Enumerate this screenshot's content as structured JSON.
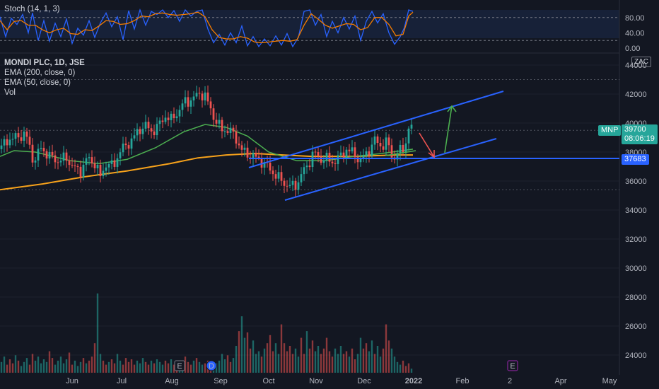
{
  "indicator": {
    "stoch_label": "Stoch (14, 1, 3)"
  },
  "legend": {
    "symbol": "MONDI PLC, 1D, JSE",
    "ema200": "EMA (200, close, 0)",
    "ema50": "EMA (50, close, 0)",
    "vol": "Vol"
  },
  "currency_badge": "ZAC",
  "price_tags": {
    "ticker": "MNP",
    "price": "39700",
    "countdown": "08:06:19",
    "level": "37683"
  },
  "colors": {
    "background": "#131722",
    "up": "#26a69a",
    "down": "#ef5350",
    "ema200": "#f7a21b",
    "ema50": "#4caf50",
    "stoch_k": "#2962ff",
    "stoch_d": "#f57c00",
    "trend": "#2962ff",
    "projection_down": "#ef5350",
    "projection_up": "#4caf50"
  },
  "chart_data": {
    "type": "candlestick",
    "timeframe": "1D",
    "x_ticks": [
      "Jun",
      "Jul",
      "Aug",
      "Sep",
      "Oct",
      "Nov",
      "Dec",
      "2022",
      "Feb",
      "2",
      "Apr",
      "May"
    ],
    "y_ticks": [
      "24000",
      "26000",
      "28000",
      "30000",
      "32000",
      "34000",
      "36000",
      "38000",
      "40000",
      "42000",
      "44000"
    ],
    "ylim": [
      22500,
      44700
    ],
    "stoch_y_ticks": [
      "0.00",
      "40.00",
      "80.00"
    ],
    "stoch_range": [
      0,
      100
    ],
    "stoch_levels": [
      20,
      80
    ],
    "close_path": [
      [
        0,
        38200
      ],
      [
        12,
        38900
      ],
      [
        24,
        39000
      ],
      [
        36,
        39300
      ],
      [
        48,
        37300
      ],
      [
        58,
        38300
      ],
      [
        70,
        37700
      ],
      [
        82,
        37400
      ],
      [
        94,
        37600
      ],
      [
        104,
        36900
      ],
      [
        114,
        36700
      ],
      [
        124,
        37600
      ],
      [
        134,
        37200
      ],
      [
        142,
        36300
      ],
      [
        150,
        37200
      ],
      [
        160,
        37000
      ],
      [
        170,
        38100
      ],
      [
        180,
        38500
      ],
      [
        192,
        39200
      ],
      [
        204,
        39900
      ],
      [
        214,
        39400
      ],
      [
        224,
        39800
      ],
      [
        234,
        40500
      ],
      [
        242,
        40200
      ],
      [
        252,
        40800
      ],
      [
        262,
        41500
      ],
      [
        272,
        41600
      ],
      [
        282,
        42100
      ],
      [
        290,
        41800
      ],
      [
        298,
        41000
      ],
      [
        306,
        40000
      ],
      [
        314,
        39600
      ],
      [
        322,
        39500
      ],
      [
        332,
        39200
      ],
      [
        340,
        38200
      ],
      [
        348,
        37900
      ],
      [
        358,
        37700
      ],
      [
        366,
        37500
      ],
      [
        376,
        37100
      ],
      [
        386,
        36600
      ],
      [
        396,
        36100
      ],
      [
        404,
        35800
      ],
      [
        412,
        35600
      ],
      [
        420,
        35800
      ],
      [
        428,
        36600
      ],
      [
        436,
        37200
      ],
      [
        444,
        38000
      ],
      [
        452,
        37500
      ],
      [
        460,
        37600
      ],
      [
        470,
        37300
      ],
      [
        480,
        37600
      ],
      [
        490,
        38200
      ],
      [
        500,
        37900
      ],
      [
        510,
        37400
      ],
      [
        520,
        38000
      ],
      [
        530,
        38800
      ],
      [
        540,
        38400
      ],
      [
        548,
        38700
      ],
      [
        556,
        37500
      ],
      [
        564,
        38000
      ],
      [
        572,
        38300
      ],
      [
        578,
        39600
      ],
      [
        584,
        39700
      ]
    ],
    "ema200_path": [
      [
        0,
        35400
      ],
      [
        60,
        35800
      ],
      [
        120,
        36300
      ],
      [
        180,
        36700
      ],
      [
        240,
        37200
      ],
      [
        280,
        37600
      ],
      [
        320,
        37800
      ],
      [
        360,
        37900
      ],
      [
        400,
        37800
      ],
      [
        440,
        37700
      ],
      [
        500,
        37700
      ],
      [
        560,
        37800
      ],
      [
        584,
        37800
      ]
    ],
    "ema50_path": [
      [
        0,
        37700
      ],
      [
        20,
        38100
      ],
      [
        50,
        38000
      ],
      [
        100,
        37400
      ],
      [
        140,
        37200
      ],
      [
        180,
        37500
      ],
      [
        220,
        38300
      ],
      [
        260,
        39400
      ],
      [
        290,
        39900
      ],
      [
        320,
        39700
      ],
      [
        350,
        39100
      ],
      [
        380,
        38000
      ],
      [
        420,
        37400
      ],
      [
        460,
        37400
      ],
      [
        500,
        37700
      ],
      [
        540,
        37900
      ],
      [
        584,
        38200
      ]
    ],
    "stoch_k_path": [
      [
        0,
        82
      ],
      [
        8,
        30
      ],
      [
        16,
        78
      ],
      [
        24,
        62
      ],
      [
        32,
        88
      ],
      [
        40,
        40
      ],
      [
        46,
        92
      ],
      [
        54,
        20
      ],
      [
        62,
        72
      ],
      [
        70,
        18
      ],
      [
        78,
        65
      ],
      [
        86,
        30
      ],
      [
        94,
        76
      ],
      [
        102,
        12
      ],
      [
        110,
        52
      ],
      [
        118,
        34
      ],
      [
        126,
        72
      ],
      [
        134,
        28
      ],
      [
        142,
        66
      ],
      [
        150,
        92
      ],
      [
        158,
        56
      ],
      [
        166,
        82
      ],
      [
        174,
        22
      ],
      [
        182,
        98
      ],
      [
        190,
        50
      ],
      [
        198,
        100
      ],
      [
        206,
        60
      ],
      [
        214,
        96
      ],
      [
        222,
        88
      ],
      [
        230,
        100
      ],
      [
        238,
        80
      ],
      [
        246,
        98
      ],
      [
        254,
        70
      ],
      [
        262,
        100
      ],
      [
        270,
        84
      ],
      [
        278,
        96
      ],
      [
        286,
        100
      ],
      [
        294,
        50
      ],
      [
        302,
        14
      ],
      [
        310,
        36
      ],
      [
        318,
        8
      ],
      [
        326,
        40
      ],
      [
        334,
        14
      ],
      [
        342,
        58
      ],
      [
        350,
        6
      ],
      [
        358,
        30
      ],
      [
        366,
        4
      ],
      [
        374,
        24
      ],
      [
        382,
        6
      ],
      [
        390,
        32
      ],
      [
        398,
        8
      ],
      [
        406,
        38
      ],
      [
        414,
        4
      ],
      [
        422,
        28
      ],
      [
        430,
        96
      ],
      [
        438,
        100
      ],
      [
        446,
        60
      ],
      [
        454,
        88
      ],
      [
        462,
        30
      ],
      [
        470,
        70
      ],
      [
        478,
        40
      ],
      [
        486,
        80
      ],
      [
        494,
        50
      ],
      [
        502,
        84
      ],
      [
        510,
        20
      ],
      [
        518,
        70
      ],
      [
        526,
        96
      ],
      [
        534,
        66
      ],
      [
        542,
        90
      ],
      [
        550,
        40
      ],
      [
        558,
        10
      ],
      [
        566,
        30
      ],
      [
        572,
        54
      ],
      [
        578,
        100
      ],
      [
        584,
        96
      ]
    ],
    "stoch_d_path": [
      [
        0,
        72
      ],
      [
        10,
        48
      ],
      [
        20,
        70
      ],
      [
        30,
        72
      ],
      [
        40,
        60
      ],
      [
        50,
        60
      ],
      [
        60,
        48
      ],
      [
        70,
        40
      ],
      [
        80,
        48
      ],
      [
        90,
        52
      ],
      [
        100,
        38
      ],
      [
        110,
        36
      ],
      [
        120,
        48
      ],
      [
        130,
        46
      ],
      [
        140,
        58
      ],
      [
        150,
        72
      ],
      [
        160,
        70
      ],
      [
        170,
        62
      ],
      [
        180,
        64
      ],
      [
        190,
        72
      ],
      [
        200,
        84
      ],
      [
        210,
        82
      ],
      [
        220,
        90
      ],
      [
        230,
        92
      ],
      [
        240,
        88
      ],
      [
        250,
        86
      ],
      [
        260,
        88
      ],
      [
        270,
        90
      ],
      [
        280,
        94
      ],
      [
        290,
        82
      ],
      [
        300,
        48
      ],
      [
        310,
        28
      ],
      [
        320,
        24
      ],
      [
        330,
        24
      ],
      [
        340,
        30
      ],
      [
        350,
        26
      ],
      [
        360,
        16
      ],
      [
        370,
        14
      ],
      [
        380,
        16
      ],
      [
        390,
        18
      ],
      [
        400,
        20
      ],
      [
        410,
        18
      ],
      [
        420,
        22
      ],
      [
        430,
        60
      ],
      [
        440,
        90
      ],
      [
        450,
        76
      ],
      [
        460,
        60
      ],
      [
        470,
        52
      ],
      [
        480,
        58
      ],
      [
        490,
        64
      ],
      [
        500,
        62
      ],
      [
        510,
        48
      ],
      [
        520,
        54
      ],
      [
        530,
        80
      ],
      [
        540,
        80
      ],
      [
        550,
        62
      ],
      [
        560,
        32
      ],
      [
        570,
        36
      ],
      [
        578,
        84
      ],
      [
        584,
        94
      ]
    ],
    "volume_bars": [
      [
        2,
        0.8
      ],
      [
        6,
        1.2
      ],
      [
        10,
        0.6
      ],
      [
        14,
        1.0
      ],
      [
        18,
        0.7
      ],
      [
        22,
        1.3
      ],
      [
        26,
        0.9
      ],
      [
        30,
        0.5
      ],
      [
        34,
        0.8
      ],
      [
        38,
        1.1
      ],
      [
        42,
        0.6
      ],
      [
        46,
        1.4
      ],
      [
        50,
        0.9
      ],
      [
        54,
        1.2
      ],
      [
        58,
        0.7
      ],
      [
        62,
        1.0
      ],
      [
        66,
        0.8
      ],
      [
        70,
        1.6
      ],
      [
        74,
        1.1
      ],
      [
        78,
        0.6
      ],
      [
        82,
        0.9
      ],
      [
        86,
        1.2
      ],
      [
        90,
        0.7
      ],
      [
        94,
        1.0
      ],
      [
        98,
        1.5
      ],
      [
        102,
        0.6
      ],
      [
        106,
        0.9
      ],
      [
        110,
        0.5
      ],
      [
        114,
        0.8
      ],
      [
        118,
        1.1
      ],
      [
        122,
        0.7
      ],
      [
        126,
        0.9
      ],
      [
        130,
        1.2
      ],
      [
        134,
        2.2
      ],
      [
        138,
        5.9
      ],
      [
        142,
        1.4
      ],
      [
        146,
        0.9
      ],
      [
        150,
        0.6
      ],
      [
        154,
        0.8
      ],
      [
        158,
        1.0
      ],
      [
        162,
        0.7
      ],
      [
        166,
        1.4
      ],
      [
        170,
        0.9
      ],
      [
        174,
        0.6
      ],
      [
        178,
        1.1
      ],
      [
        182,
        0.8
      ],
      [
        186,
        1.0
      ],
      [
        190,
        0.6
      ],
      [
        194,
        0.9
      ],
      [
        198,
        0.7
      ],
      [
        202,
        1.1
      ],
      [
        206,
        0.8
      ],
      [
        210,
        0.6
      ],
      [
        214,
        0.9
      ],
      [
        218,
        0.7
      ],
      [
        222,
        1.0
      ],
      [
        226,
        0.8
      ],
      [
        230,
        0.6
      ],
      [
        234,
        0.9
      ],
      [
        238,
        0.7
      ],
      [
        242,
        1.0
      ],
      [
        246,
        0.6
      ],
      [
        250,
        0.8
      ],
      [
        254,
        0.7
      ],
      [
        258,
        0.9
      ],
      [
        262,
        1.2
      ],
      [
        266,
        0.8
      ],
      [
        270,
        0.6
      ],
      [
        274,
        0.9
      ],
      [
        278,
        1.1
      ],
      [
        282,
        0.8
      ],
      [
        286,
        0.6
      ],
      [
        290,
        0.7
      ],
      [
        294,
        0.9
      ],
      [
        298,
        0.6
      ],
      [
        302,
        0.8
      ],
      [
        306,
        0.7
      ],
      [
        310,
        0.9
      ],
      [
        314,
        1.4
      ],
      [
        318,
        1.0
      ],
      [
        322,
        1.3
      ],
      [
        326,
        0.8
      ],
      [
        330,
        1.1
      ],
      [
        334,
        2.0
      ],
      [
        338,
        3.1
      ],
      [
        342,
        4.2
      ],
      [
        346,
        2.6
      ],
      [
        350,
        3.0
      ],
      [
        354,
        1.8
      ],
      [
        358,
        2.4
      ],
      [
        362,
        1.4
      ],
      [
        366,
        1.6
      ],
      [
        370,
        1.2
      ],
      [
        374,
        1.8
      ],
      [
        378,
        2.2
      ],
      [
        382,
        2.8
      ],
      [
        386,
        1.6
      ],
      [
        390,
        2.2
      ],
      [
        394,
        1.4
      ],
      [
        398,
        3.6
      ],
      [
        402,
        2.2
      ],
      [
        406,
        1.6
      ],
      [
        410,
        2.0
      ],
      [
        414,
        1.4
      ],
      [
        418,
        1.8
      ],
      [
        422,
        1.2
      ],
      [
        426,
        2.6
      ],
      [
        430,
        1.4
      ],
      [
        434,
        3.1
      ],
      [
        438,
        1.8
      ],
      [
        442,
        2.4
      ],
      [
        446,
        1.6
      ],
      [
        450,
        2.0
      ],
      [
        454,
        1.4
      ],
      [
        458,
        1.8
      ],
      [
        462,
        2.6
      ],
      [
        466,
        1.6
      ],
      [
        470,
        1.2
      ],
      [
        474,
        1.8
      ],
      [
        478,
        1.4
      ],
      [
        482,
        2.0
      ],
      [
        486,
        1.4
      ],
      [
        490,
        1.6
      ],
      [
        494,
        1.2
      ],
      [
        498,
        1.8
      ],
      [
        502,
        1.0
      ],
      [
        506,
        1.4
      ],
      [
        510,
        2.6
      ],
      [
        514,
        1.8
      ],
      [
        518,
        2.2
      ],
      [
        522,
        1.6
      ],
      [
        526,
        2.4
      ],
      [
        530,
        1.4
      ],
      [
        534,
        2.0
      ],
      [
        538,
        1.2
      ],
      [
        542,
        1.8
      ],
      [
        546,
        3.6
      ],
      [
        550,
        2.4
      ],
      [
        554,
        1.8
      ],
      [
        558,
        1.2
      ],
      [
        562,
        0.8
      ],
      [
        566,
        0.6
      ],
      [
        570,
        0.9
      ],
      [
        574,
        0.5
      ],
      [
        578,
        0.7
      ],
      [
        582,
        0.3
      ]
    ],
    "event_markers": [
      "E",
      "D",
      "E"
    ]
  }
}
